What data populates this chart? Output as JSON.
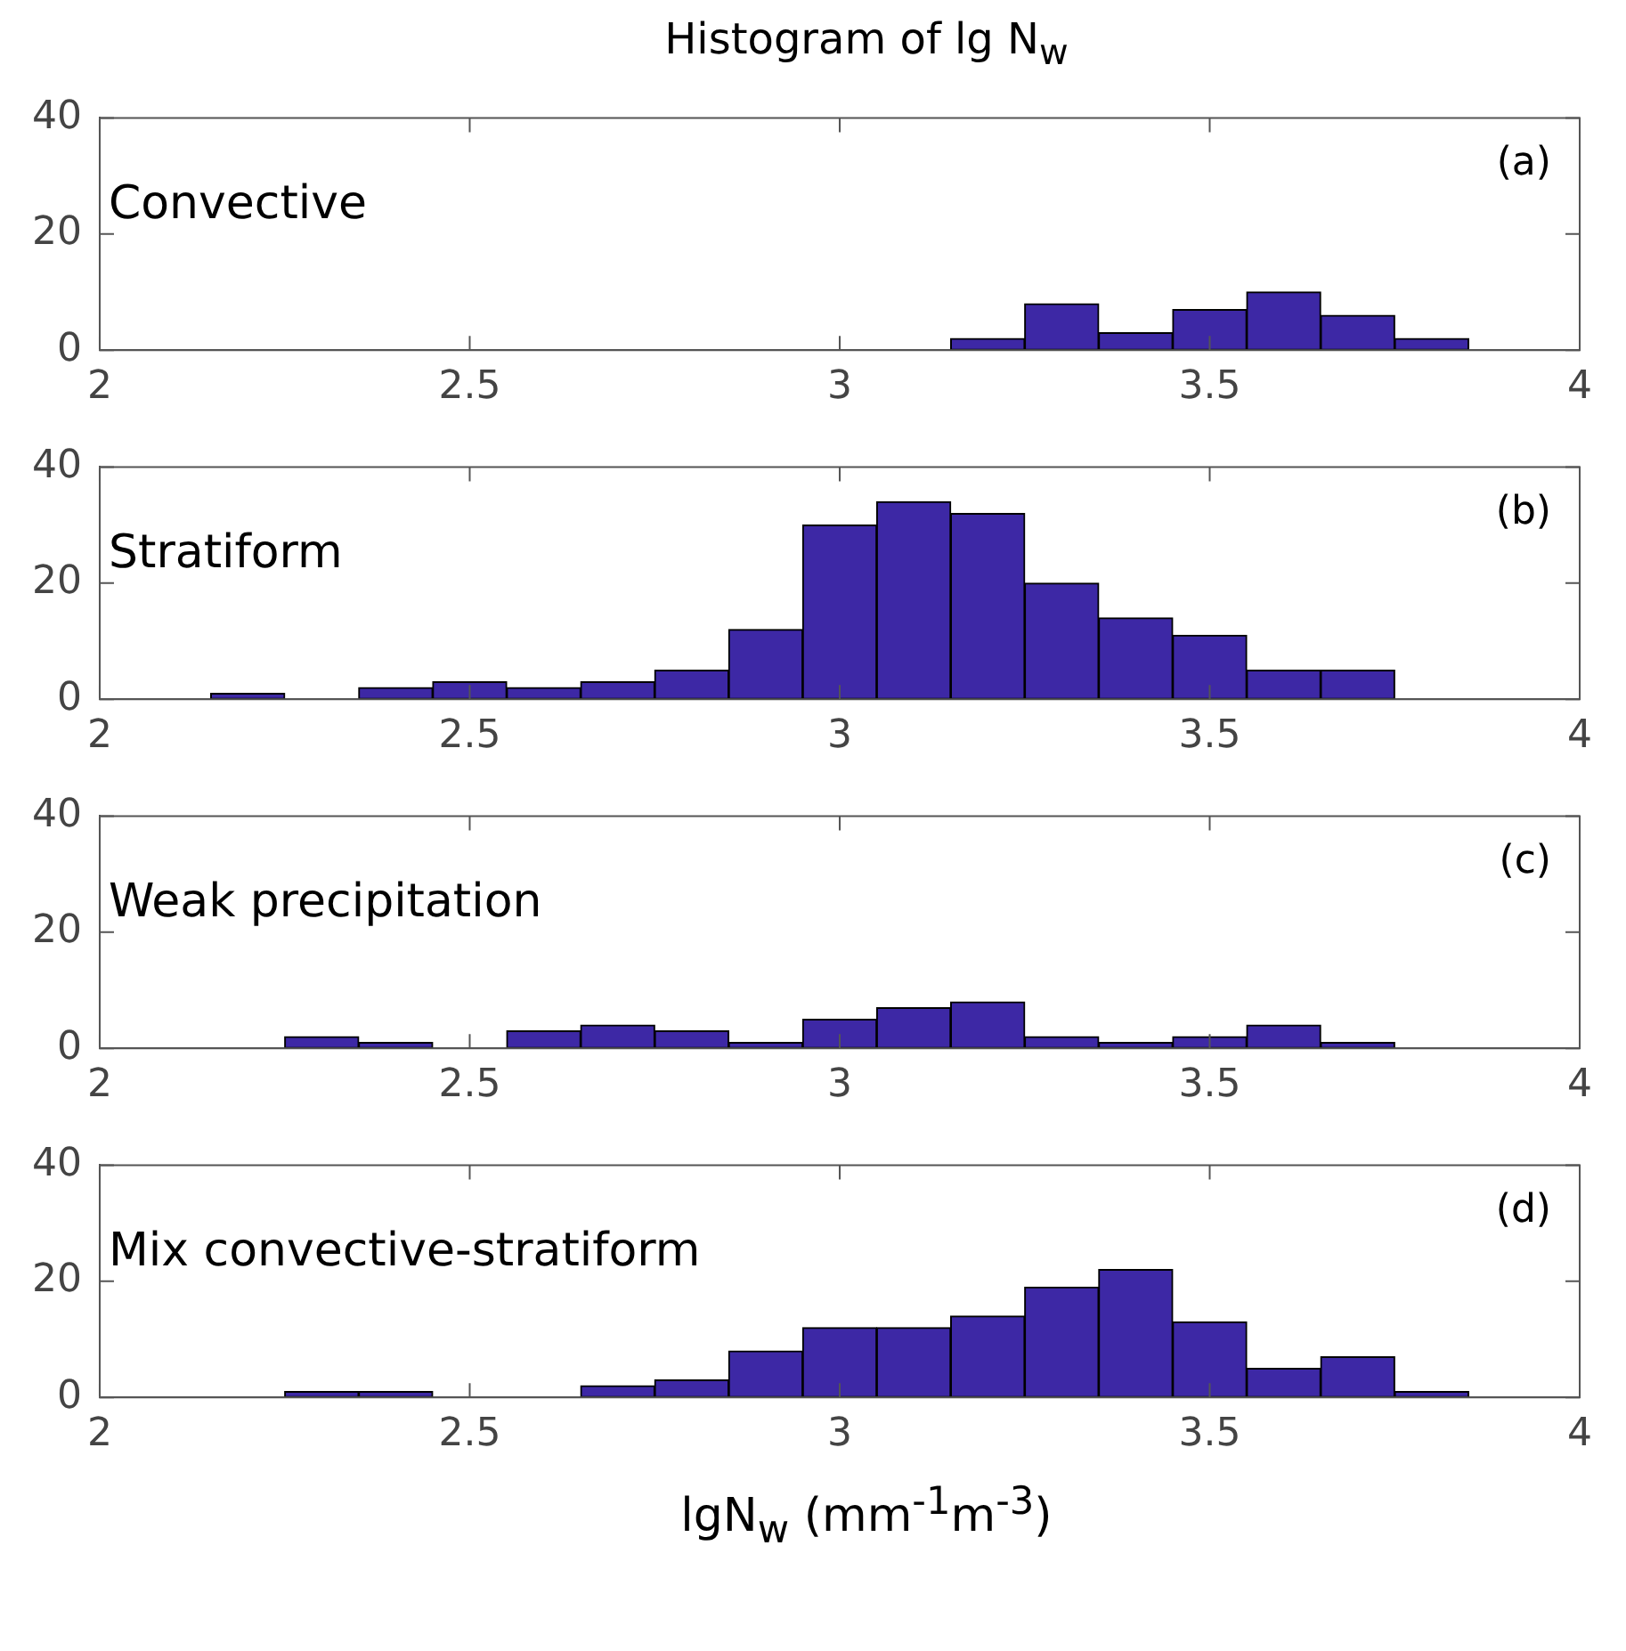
{
  "chart_data": [
    {
      "type": "histogram",
      "title": "Histogram of lg N$_{w}$",
      "annotations": [
        "Convective",
        "(a)"
      ],
      "bins": [
        3.15,
        3.25,
        3.35,
        3.45,
        3.55,
        3.65,
        3.75,
        3.85
      ],
      "values": [
        2,
        8,
        3,
        7,
        10,
        6,
        2
      ],
      "color": "#3d28a5",
      "xlim": [
        2,
        4
      ],
      "xticks": [
        2,
        2.5,
        3,
        3.5,
        4
      ],
      "ylim": [
        0,
        40
      ],
      "yticks": [
        0,
        20,
        40
      ],
      "grid": false,
      "legend": false
    },
    {
      "type": "histogram",
      "annotations": [
        "Stratiform",
        "(b)"
      ],
      "bins": [
        2.15,
        2.25,
        2.35,
        2.45,
        2.55,
        2.65,
        2.75,
        2.85,
        2.95,
        3.05,
        3.15,
        3.25,
        3.35,
        3.45,
        3.55,
        3.65,
        3.75
      ],
      "values": [
        1,
        0,
        2,
        3,
        2,
        3,
        5,
        12,
        30,
        34,
        32,
        20,
        14,
        11,
        5,
        5
      ],
      "color": "#3d28a5",
      "xlim": [
        2,
        4
      ],
      "xticks": [
        2,
        2.5,
        3,
        3.5,
        4
      ],
      "ylim": [
        0,
        40
      ],
      "yticks": [
        0,
        20,
        40
      ],
      "grid": false,
      "legend": false
    },
    {
      "type": "histogram",
      "annotations": [
        "Weak precipitation",
        "(c)"
      ],
      "bins": [
        2.25,
        2.35,
        2.45,
        2.55,
        2.65,
        2.75,
        2.85,
        2.95,
        3.05,
        3.15,
        3.25,
        3.35,
        3.45,
        3.55,
        3.65,
        3.75
      ],
      "values": [
        2,
        1,
        0,
        3,
        4,
        3,
        1,
        5,
        7,
        8,
        2,
        1,
        2,
        4,
        1
      ],
      "color": "#3d28a5",
      "xlim": [
        2,
        4
      ],
      "xticks": [
        2,
        2.5,
        3,
        3.5,
        4
      ],
      "ylim": [
        0,
        40
      ],
      "yticks": [
        0,
        20,
        40
      ],
      "grid": false,
      "legend": false
    },
    {
      "type": "histogram",
      "xlabel": "lgN$_{w}$ (mm$^{-1}$m$^{-3}$)",
      "annotations": [
        "Mix convective-stratiform",
        "(d)"
      ],
      "bins": [
        2.25,
        2.35,
        2.45,
        2.55,
        2.65,
        2.75,
        2.85,
        2.95,
        3.05,
        3.15,
        3.25,
        3.35,
        3.45,
        3.55,
        3.65,
        3.75,
        3.85
      ],
      "values": [
        1,
        1,
        0,
        0,
        2,
        3,
        8,
        12,
        12,
        14,
        19,
        22,
        13,
        5,
        7,
        1
      ],
      "color": "#3d28a5",
      "xlim": [
        2,
        4
      ],
      "xticks": [
        2,
        2.5,
        3,
        3.5,
        4
      ],
      "ylim": [
        0,
        40
      ],
      "yticks": [
        0,
        20,
        40
      ],
      "grid": false,
      "legend": false
    }
  ]
}
